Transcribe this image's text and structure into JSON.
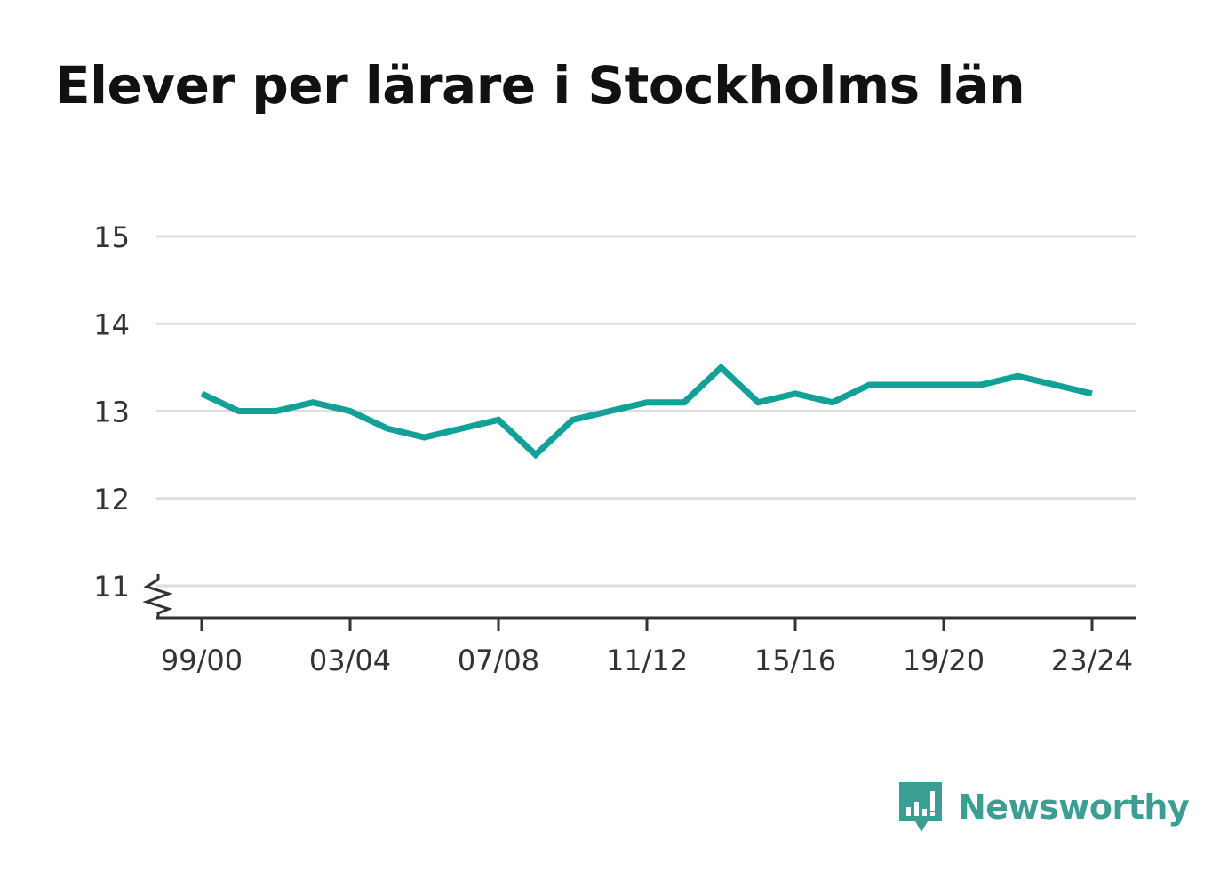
{
  "title": "Elever per lärare i Stockholms län",
  "brand": {
    "name": "Newsworthy",
    "color": "#3a9e92"
  },
  "chart_data": {
    "type": "line",
    "title": "Elever per lärare i Stockholms län",
    "xlabel": "",
    "ylabel": "",
    "x": [
      "99/00",
      "00/01",
      "01/02",
      "02/03",
      "03/04",
      "04/05",
      "05/06",
      "06/07",
      "07/08",
      "08/09",
      "09/10",
      "10/11",
      "11/12",
      "12/13",
      "13/14",
      "14/15",
      "15/16",
      "16/17",
      "17/18",
      "18/19",
      "19/20",
      "20/21",
      "21/22",
      "22/23",
      "23/24"
    ],
    "x_tick_labels": [
      "99/00",
      "03/04",
      "07/08",
      "11/12",
      "15/16",
      "19/20",
      "23/24"
    ],
    "y_tick_labels": [
      "11",
      "12",
      "13",
      "14",
      "15"
    ],
    "ylim": [
      11,
      15
    ],
    "y_axis_broken": true,
    "grid": true,
    "series": [
      {
        "color": "#13a097",
        "values": [
          13.2,
          13.0,
          13.0,
          13.1,
          13.0,
          12.8,
          12.7,
          12.8,
          12.9,
          12.5,
          12.9,
          13.0,
          13.1,
          13.1,
          13.5,
          13.1,
          13.2,
          13.1,
          13.3,
          13.3,
          13.3,
          13.3,
          13.4,
          13.3,
          13.2
        ]
      }
    ]
  }
}
